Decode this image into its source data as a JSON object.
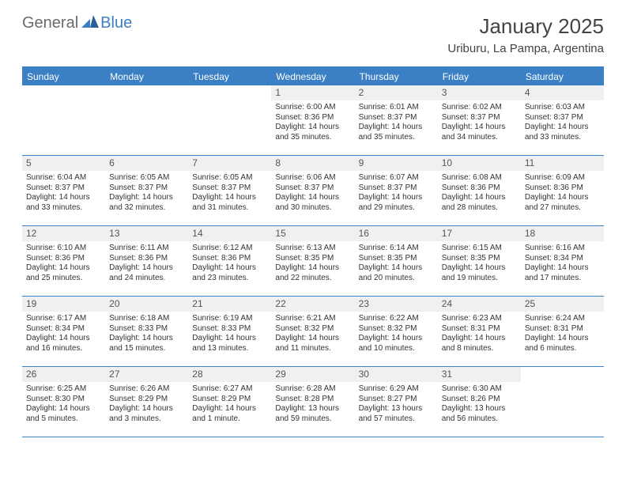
{
  "colors": {
    "brand_blue": "#3b7fc4",
    "header_gray": "#6b6b6b",
    "text": "#333333",
    "daynum_bg": "#eef0f2",
    "background": "#ffffff"
  },
  "logo": {
    "text1": "General",
    "text2": "Blue"
  },
  "title": "January 2025",
  "location": "Uriburu, La Pampa, Argentina",
  "weekdays": [
    "Sunday",
    "Monday",
    "Tuesday",
    "Wednesday",
    "Thursday",
    "Friday",
    "Saturday"
  ],
  "fonts": {
    "title_size": 26,
    "location_size": 15,
    "weekday_size": 12,
    "daynum_size": 12,
    "body_size": 10
  },
  "weeks": [
    [
      {
        "n": "",
        "lines": []
      },
      {
        "n": "",
        "lines": []
      },
      {
        "n": "",
        "lines": []
      },
      {
        "n": "1",
        "lines": [
          "Sunrise: 6:00 AM",
          "Sunset: 8:36 PM",
          "Daylight: 14 hours and 35 minutes."
        ]
      },
      {
        "n": "2",
        "lines": [
          "Sunrise: 6:01 AM",
          "Sunset: 8:37 PM",
          "Daylight: 14 hours and 35 minutes."
        ]
      },
      {
        "n": "3",
        "lines": [
          "Sunrise: 6:02 AM",
          "Sunset: 8:37 PM",
          "Daylight: 14 hours and 34 minutes."
        ]
      },
      {
        "n": "4",
        "lines": [
          "Sunrise: 6:03 AM",
          "Sunset: 8:37 PM",
          "Daylight: 14 hours and 33 minutes."
        ]
      }
    ],
    [
      {
        "n": "5",
        "lines": [
          "Sunrise: 6:04 AM",
          "Sunset: 8:37 PM",
          "Daylight: 14 hours and 33 minutes."
        ]
      },
      {
        "n": "6",
        "lines": [
          "Sunrise: 6:05 AM",
          "Sunset: 8:37 PM",
          "Daylight: 14 hours and 32 minutes."
        ]
      },
      {
        "n": "7",
        "lines": [
          "Sunrise: 6:05 AM",
          "Sunset: 8:37 PM",
          "Daylight: 14 hours and 31 minutes."
        ]
      },
      {
        "n": "8",
        "lines": [
          "Sunrise: 6:06 AM",
          "Sunset: 8:37 PM",
          "Daylight: 14 hours and 30 minutes."
        ]
      },
      {
        "n": "9",
        "lines": [
          "Sunrise: 6:07 AM",
          "Sunset: 8:37 PM",
          "Daylight: 14 hours and 29 minutes."
        ]
      },
      {
        "n": "10",
        "lines": [
          "Sunrise: 6:08 AM",
          "Sunset: 8:36 PM",
          "Daylight: 14 hours and 28 minutes."
        ]
      },
      {
        "n": "11",
        "lines": [
          "Sunrise: 6:09 AM",
          "Sunset: 8:36 PM",
          "Daylight: 14 hours and 27 minutes."
        ]
      }
    ],
    [
      {
        "n": "12",
        "lines": [
          "Sunrise: 6:10 AM",
          "Sunset: 8:36 PM",
          "Daylight: 14 hours and 25 minutes."
        ]
      },
      {
        "n": "13",
        "lines": [
          "Sunrise: 6:11 AM",
          "Sunset: 8:36 PM",
          "Daylight: 14 hours and 24 minutes."
        ]
      },
      {
        "n": "14",
        "lines": [
          "Sunrise: 6:12 AM",
          "Sunset: 8:36 PM",
          "Daylight: 14 hours and 23 minutes."
        ]
      },
      {
        "n": "15",
        "lines": [
          "Sunrise: 6:13 AM",
          "Sunset: 8:35 PM",
          "Daylight: 14 hours and 22 minutes."
        ]
      },
      {
        "n": "16",
        "lines": [
          "Sunrise: 6:14 AM",
          "Sunset: 8:35 PM",
          "Daylight: 14 hours and 20 minutes."
        ]
      },
      {
        "n": "17",
        "lines": [
          "Sunrise: 6:15 AM",
          "Sunset: 8:35 PM",
          "Daylight: 14 hours and 19 minutes."
        ]
      },
      {
        "n": "18",
        "lines": [
          "Sunrise: 6:16 AM",
          "Sunset: 8:34 PM",
          "Daylight: 14 hours and 17 minutes."
        ]
      }
    ],
    [
      {
        "n": "19",
        "lines": [
          "Sunrise: 6:17 AM",
          "Sunset: 8:34 PM",
          "Daylight: 14 hours and 16 minutes."
        ]
      },
      {
        "n": "20",
        "lines": [
          "Sunrise: 6:18 AM",
          "Sunset: 8:33 PM",
          "Daylight: 14 hours and 15 minutes."
        ]
      },
      {
        "n": "21",
        "lines": [
          "Sunrise: 6:19 AM",
          "Sunset: 8:33 PM",
          "Daylight: 14 hours and 13 minutes."
        ]
      },
      {
        "n": "22",
        "lines": [
          "Sunrise: 6:21 AM",
          "Sunset: 8:32 PM",
          "Daylight: 14 hours and 11 minutes."
        ]
      },
      {
        "n": "23",
        "lines": [
          "Sunrise: 6:22 AM",
          "Sunset: 8:32 PM",
          "Daylight: 14 hours and 10 minutes."
        ]
      },
      {
        "n": "24",
        "lines": [
          "Sunrise: 6:23 AM",
          "Sunset: 8:31 PM",
          "Daylight: 14 hours and 8 minutes."
        ]
      },
      {
        "n": "25",
        "lines": [
          "Sunrise: 6:24 AM",
          "Sunset: 8:31 PM",
          "Daylight: 14 hours and 6 minutes."
        ]
      }
    ],
    [
      {
        "n": "26",
        "lines": [
          "Sunrise: 6:25 AM",
          "Sunset: 8:30 PM",
          "Daylight: 14 hours and 5 minutes."
        ]
      },
      {
        "n": "27",
        "lines": [
          "Sunrise: 6:26 AM",
          "Sunset: 8:29 PM",
          "Daylight: 14 hours and 3 minutes."
        ]
      },
      {
        "n": "28",
        "lines": [
          "Sunrise: 6:27 AM",
          "Sunset: 8:29 PM",
          "Daylight: 14 hours and 1 minute."
        ]
      },
      {
        "n": "29",
        "lines": [
          "Sunrise: 6:28 AM",
          "Sunset: 8:28 PM",
          "Daylight: 13 hours and 59 minutes."
        ]
      },
      {
        "n": "30",
        "lines": [
          "Sunrise: 6:29 AM",
          "Sunset: 8:27 PM",
          "Daylight: 13 hours and 57 minutes."
        ]
      },
      {
        "n": "31",
        "lines": [
          "Sunrise: 6:30 AM",
          "Sunset: 8:26 PM",
          "Daylight: 13 hours and 56 minutes."
        ]
      },
      {
        "n": "",
        "lines": []
      }
    ]
  ]
}
